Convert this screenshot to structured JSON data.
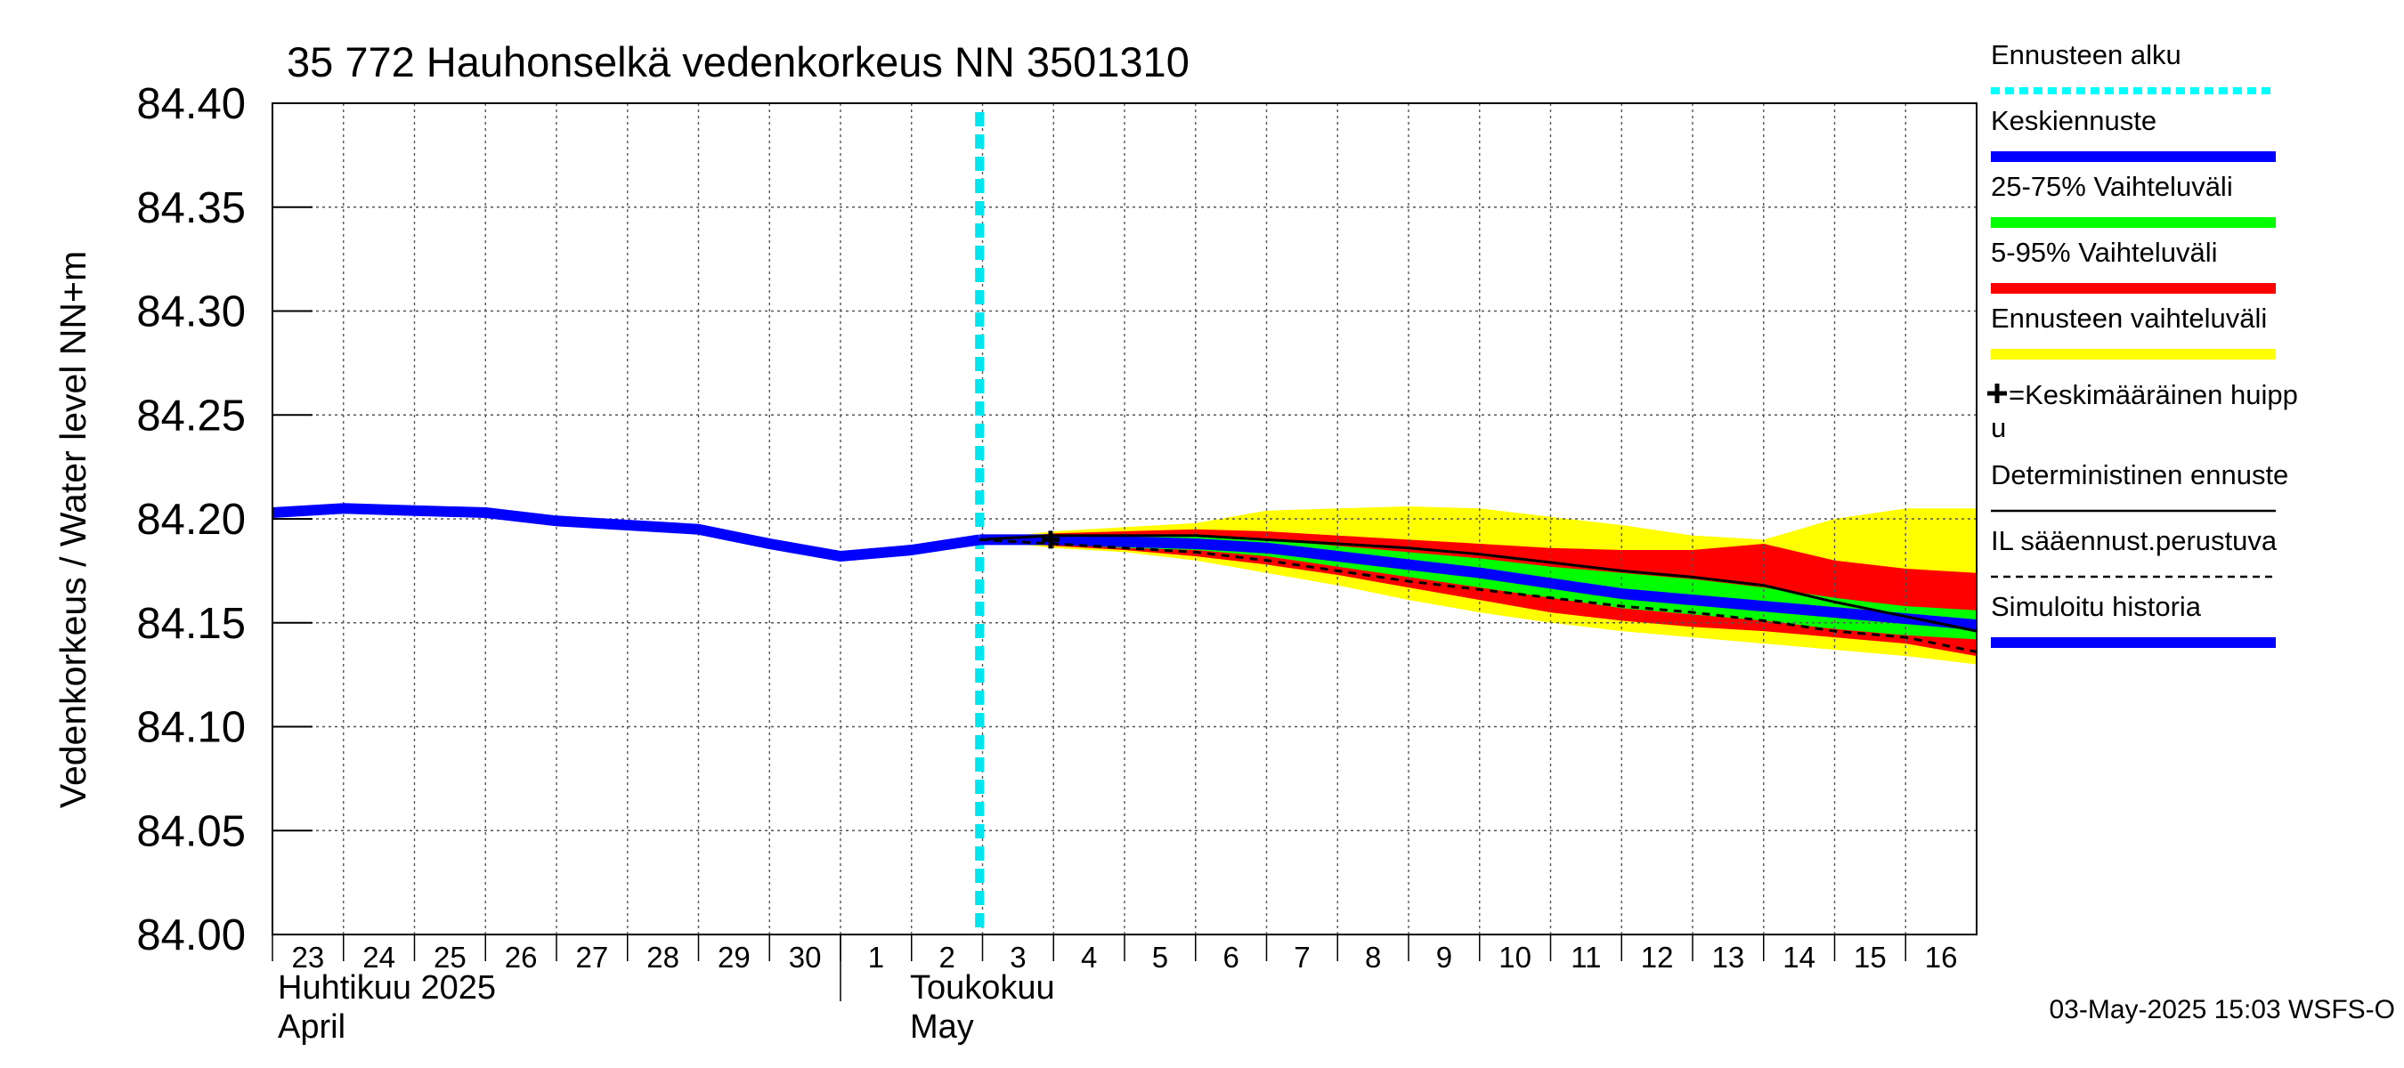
{
  "chart_data": {
    "type": "line",
    "title": "35 772 Hauhonselkä vedenkorkeus NN 3501310",
    "ylabel": "Vedenkorkeus / Water level   NN+m",
    "ylim": [
      84.0,
      84.4
    ],
    "y_ticks": [
      "84.00",
      "84.05",
      "84.10",
      "84.15",
      "84.20",
      "84.25",
      "84.30",
      "84.35",
      "84.40"
    ],
    "y_tick_values": [
      84.0,
      84.05,
      84.1,
      84.15,
      84.2,
      84.25,
      84.3,
      84.35,
      84.4
    ],
    "x_range": [
      "2025-04-23",
      "2025-05-17"
    ],
    "x_day_labels": [
      "23",
      "24",
      "25",
      "26",
      "27",
      "28",
      "29",
      "30",
      "1",
      "2",
      "3",
      "4",
      "5",
      "6",
      "7",
      "8",
      "9",
      "10",
      "11",
      "12",
      "13",
      "14",
      "15",
      "16"
    ],
    "x_day_dates": [
      "2025-04-23",
      "2025-04-24",
      "2025-04-25",
      "2025-04-26",
      "2025-04-27",
      "2025-04-28",
      "2025-04-29",
      "2025-04-30",
      "2025-05-01",
      "2025-05-02",
      "2025-05-03",
      "2025-05-04",
      "2025-05-05",
      "2025-05-06",
      "2025-05-07",
      "2025-05-08",
      "2025-05-09",
      "2025-05-10",
      "2025-05-11",
      "2025-05-12",
      "2025-05-13",
      "2025-05-14",
      "2025-05-15",
      "2025-05-16"
    ],
    "month_labels": [
      {
        "line1": "Huhtikuu  2025",
        "line2": "April",
        "date": "2025-04-23"
      },
      {
        "line1": "Toukokuu",
        "line2": "May",
        "date": "2025-05-02"
      }
    ],
    "grid": true,
    "legend_position": "right",
    "forecast_start": "2025-05-02T23:00",
    "mean_peak": {
      "date": "2025-05-03T23:00",
      "value": 84.19
    },
    "series": [
      {
        "name": "Ennusteen vaihteluväli",
        "kind": "band",
        "color": "#ffff00",
        "x": [
          "2025-05-02T23:00",
          "2025-05-04",
          "2025-05-05",
          "2025-05-06",
          "2025-05-07",
          "2025-05-08",
          "2025-05-09",
          "2025-05-10",
          "2025-05-11",
          "2025-05-12",
          "2025-05-13",
          "2025-05-14",
          "2025-05-15",
          "2025-05-16",
          "2025-05-17"
        ],
        "upper": [
          84.19,
          84.194,
          84.196,
          84.198,
          84.204,
          84.205,
          84.206,
          84.205,
          84.201,
          84.197,
          84.192,
          84.19,
          84.2,
          84.205,
          84.205
        ],
        "lower": [
          84.19,
          84.186,
          84.184,
          84.18,
          84.174,
          84.168,
          84.161,
          84.155,
          84.15,
          84.146,
          84.143,
          84.14,
          84.137,
          84.134,
          84.13
        ]
      },
      {
        "name": "5-95% Vaihteluväli",
        "kind": "band",
        "color": "#ff0000",
        "x": [
          "2025-05-02T23:00",
          "2025-05-04",
          "2025-05-05",
          "2025-05-06",
          "2025-05-07",
          "2025-05-08",
          "2025-05-09",
          "2025-05-10",
          "2025-05-11",
          "2025-05-12",
          "2025-05-13",
          "2025-05-14",
          "2025-05-15",
          "2025-05-16",
          "2025-05-17"
        ],
        "upper": [
          84.19,
          84.193,
          84.194,
          84.195,
          84.194,
          84.192,
          84.19,
          84.188,
          84.186,
          84.185,
          84.185,
          84.188,
          84.18,
          84.176,
          84.174
        ],
        "lower": [
          84.19,
          84.187,
          84.185,
          84.182,
          84.178,
          84.173,
          84.167,
          84.161,
          84.155,
          84.151,
          84.148,
          84.146,
          84.143,
          84.14,
          84.134
        ]
      },
      {
        "name": "25-75% Vaihteluväli",
        "kind": "band",
        "color": "#00ff00",
        "x": [
          "2025-05-02T23:00",
          "2025-05-04",
          "2025-05-05",
          "2025-05-06",
          "2025-05-07",
          "2025-05-08",
          "2025-05-09",
          "2025-05-10",
          "2025-05-11",
          "2025-05-12",
          "2025-05-13",
          "2025-05-14",
          "2025-05-15",
          "2025-05-16",
          "2025-05-17"
        ],
        "upper": [
          84.19,
          84.192,
          84.192,
          84.192,
          84.19,
          84.187,
          84.184,
          84.181,
          84.177,
          84.174,
          84.171,
          84.167,
          84.162,
          84.158,
          84.156
        ],
        "lower": [
          84.19,
          84.188,
          84.186,
          84.185,
          84.182,
          84.177,
          84.172,
          84.167,
          84.162,
          84.157,
          84.154,
          84.151,
          84.147,
          84.144,
          84.142
        ]
      },
      {
        "name": "Simuloitu historia",
        "kind": "line",
        "color": "#0000ff",
        "x": [
          "2025-04-23",
          "2025-04-24",
          "2025-04-25",
          "2025-04-26",
          "2025-04-27",
          "2025-04-28",
          "2025-04-29",
          "2025-04-30",
          "2025-05-01",
          "2025-05-02",
          "2025-05-02T23:00"
        ],
        "y": [
          84.203,
          84.205,
          84.204,
          84.203,
          84.199,
          84.197,
          84.195,
          84.188,
          84.182,
          84.185,
          84.19
        ]
      },
      {
        "name": "Keskiennuste",
        "kind": "line",
        "color": "#0000ff",
        "x": [
          "2025-05-02T23:00",
          "2025-05-04",
          "2025-05-05",
          "2025-05-06",
          "2025-05-07",
          "2025-05-08",
          "2025-05-09",
          "2025-05-10",
          "2025-05-11",
          "2025-05-12",
          "2025-05-13",
          "2025-05-14",
          "2025-05-15",
          "2025-05-16",
          "2025-05-17"
        ],
        "y": [
          84.19,
          84.19,
          84.189,
          84.188,
          84.186,
          84.182,
          84.178,
          84.174,
          84.169,
          84.164,
          84.161,
          84.158,
          84.155,
          84.152,
          84.149
        ]
      },
      {
        "name": "Deterministinen ennuste",
        "kind": "line",
        "color": "#000000",
        "x": [
          "2025-05-02T23:00",
          "2025-05-04",
          "2025-05-05",
          "2025-05-06",
          "2025-05-07",
          "2025-05-08",
          "2025-05-09",
          "2025-05-10",
          "2025-05-11",
          "2025-05-12",
          "2025-05-13",
          "2025-05-14",
          "2025-05-15",
          "2025-05-16",
          "2025-05-17"
        ],
        "y": [
          84.19,
          84.192,
          84.192,
          84.192,
          84.19,
          84.188,
          84.186,
          84.183,
          84.179,
          84.175,
          84.172,
          84.168,
          84.16,
          84.153,
          84.146
        ]
      },
      {
        "name": "IL sääennust.perustuva",
        "kind": "line",
        "color": "#000000",
        "dashed": true,
        "x": [
          "2025-05-02T23:00",
          "2025-05-04",
          "2025-05-05",
          "2025-05-06",
          "2025-05-07",
          "2025-05-08",
          "2025-05-09",
          "2025-05-10",
          "2025-05-11",
          "2025-05-12",
          "2025-05-13",
          "2025-05-14",
          "2025-05-15",
          "2025-05-16",
          "2025-05-17"
        ],
        "y": [
          84.19,
          84.188,
          84.186,
          84.184,
          84.18,
          84.175,
          84.17,
          84.166,
          84.162,
          84.158,
          84.155,
          84.151,
          84.146,
          84.143,
          84.136
        ]
      }
    ]
  },
  "legend": {
    "items": [
      {
        "label": "Ennusteen alku",
        "color": "#00ffff",
        "style": "dotted"
      },
      {
        "label": "Keskiennuste",
        "color": "#0000ff",
        "style": "solid"
      },
      {
        "label": "25-75% Vaihteluväli",
        "color": "#00ff00",
        "style": "solid"
      },
      {
        "label": "5-95% Vaihteluväli",
        "color": "#ff0000",
        "style": "solid"
      },
      {
        "label": "Ennusteen vaihteluväli",
        "color": "#ffff00",
        "style": "solid"
      },
      {
        "label": "=Keskimääräinen huipp",
        "label2": "u",
        "color": "#000000",
        "style": "marker"
      },
      {
        "label": "Deterministinen ennuste",
        "color": "#000000",
        "style": "thin"
      },
      {
        "label": "IL sääennust.perustuva",
        "color": "#000000",
        "style": "dashed"
      },
      {
        "label": "Simuloitu historia",
        "color": "#0000ff",
        "style": "solid"
      }
    ]
  },
  "footer": "03-May-2025 15:03 WSFS-O"
}
